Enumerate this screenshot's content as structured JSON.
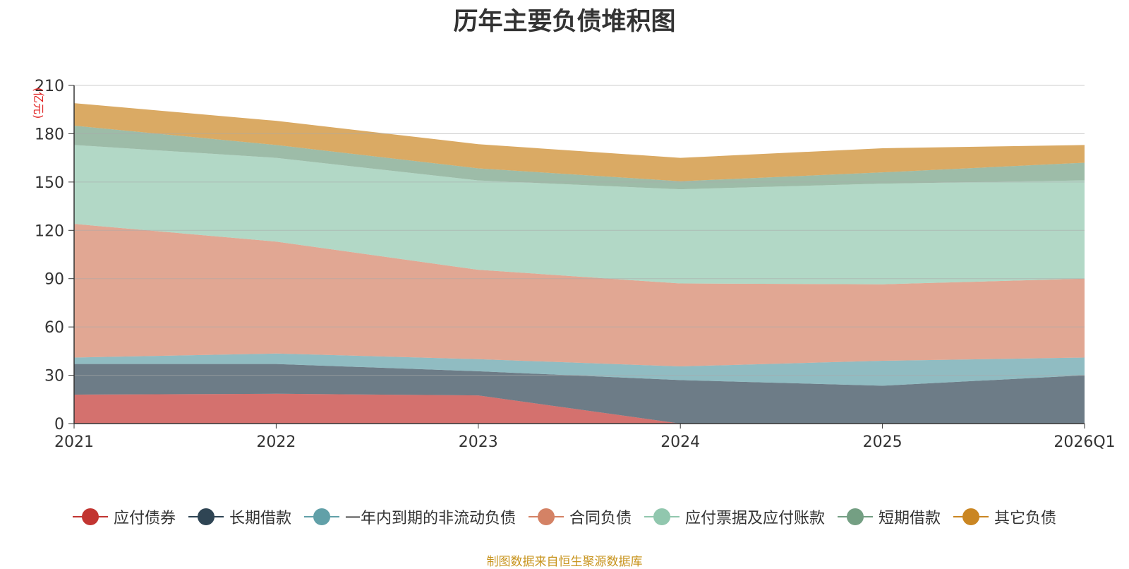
{
  "chart_data": {
    "type": "area",
    "stacked": true,
    "title": "历年主要负债堆积图",
    "ylabel": "(亿元)",
    "xlabel": "",
    "categories": [
      "2021",
      "2022",
      "2023",
      "2024",
      "2025",
      "2026Q1"
    ],
    "ylim": [
      0,
      210
    ],
    "yticks": [
      0,
      30,
      60,
      90,
      120,
      150,
      180,
      210
    ],
    "grid": true,
    "legend_position": "bottom",
    "series": [
      {
        "name": "应付债券",
        "color": "#c23531",
        "values": [
          18,
          18.5,
          17.5,
          0,
          0,
          0
        ]
      },
      {
        "name": "长期借款",
        "color": "#2f4554",
        "values": [
          19,
          18.5,
          15,
          27,
          23.5,
          30
        ]
      },
      {
        "name": "一年内到期的非流动负债",
        "color": "#61a0a8",
        "values": [
          4,
          6.5,
          7.5,
          8.5,
          15.5,
          11
        ]
      },
      {
        "name": "合同负债",
        "color": "#d48265",
        "values": [
          83,
          69.5,
          55.5,
          51.5,
          47.5,
          49
        ]
      },
      {
        "name": "应付票据及应付账款",
        "color": "#91c7ae",
        "values": [
          49,
          52,
          55.5,
          58.5,
          62.5,
          61
        ]
      },
      {
        "name": "短期借款",
        "color": "#749f83",
        "values": [
          12,
          8,
          7.5,
          5,
          7,
          11
        ]
      },
      {
        "name": "其它负债",
        "color": "#ca8622",
        "values": [
          14,
          15,
          15,
          14.5,
          15,
          11
        ]
      }
    ],
    "source_note": "制图数据来自恒生聚源数据库"
  }
}
